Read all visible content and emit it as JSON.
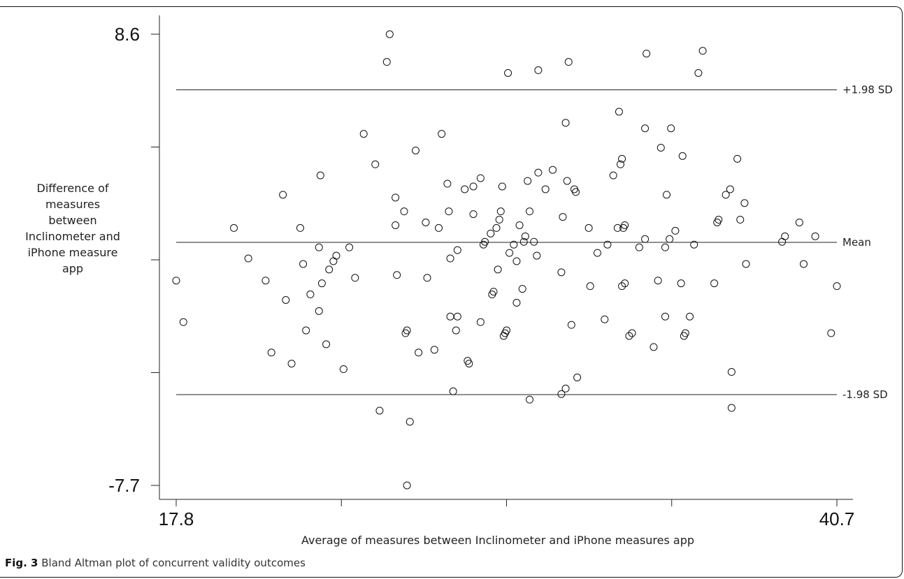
{
  "chart_data": {
    "type": "scatter",
    "xlabel": "Average of measures between Inclinometer and iPhone measures app",
    "ylabel": [
      "Difference of",
      "measures",
      "between",
      "Inclinometer and",
      "iPhone measure",
      "app"
    ],
    "xlim": [
      17.8,
      40.7
    ],
    "ylim": [
      -7.7,
      8.6
    ],
    "x_tick_labels": [
      "17.8",
      "",
      "",
      "",
      "40.7"
    ],
    "y_tick_labels": [
      "8.6",
      "",
      "",
      "",
      "-7.7"
    ],
    "reference_lines": [
      {
        "label": "+1.98 SD",
        "y": 6.59
      },
      {
        "label": "Mean",
        "y": 1.08
      },
      {
        "label": "-1.98 SD",
        "y": -4.42
      }
    ],
    "points": [
      [
        17.8,
        -0.3
      ],
      [
        18.05,
        -1.8
      ],
      [
        19.8,
        1.6
      ],
      [
        20.3,
        0.5
      ],
      [
        20.9,
        -0.3
      ],
      [
        21.1,
        -2.9
      ],
      [
        21.5,
        2.8
      ],
      [
        21.6,
        -1.0
      ],
      [
        21.8,
        -3.3
      ],
      [
        22.1,
        1.6
      ],
      [
        22.2,
        0.3
      ],
      [
        22.3,
        -2.1
      ],
      [
        22.75,
        -1.4
      ],
      [
        22.85,
        -0.4
      ],
      [
        22.45,
        -0.8
      ],
      [
        22.75,
        0.9
      ],
      [
        22.8,
        3.5
      ],
      [
        23.0,
        -2.6
      ],
      [
        23.1,
        0.1
      ],
      [
        23.25,
        0.4
      ],
      [
        23.35,
        0.6
      ],
      [
        23.6,
        -3.5
      ],
      [
        23.8,
        0.9
      ],
      [
        24.0,
        -0.2
      ],
      [
        24.3,
        5.0
      ],
      [
        24.7,
        3.9
      ],
      [
        24.85,
        -5.0
      ],
      [
        25.1,
        7.6
      ],
      [
        25.2,
        8.6
      ],
      [
        25.4,
        2.7
      ],
      [
        25.4,
        1.7
      ],
      [
        25.45,
        -0.1
      ],
      [
        25.7,
        2.2
      ],
      [
        25.75,
        -2.2
      ],
      [
        25.8,
        -2.1
      ],
      [
        25.9,
        -5.4
      ],
      [
        25.8,
        -7.7
      ],
      [
        26.1,
        4.4
      ],
      [
        26.2,
        -2.9
      ],
      [
        26.45,
        1.8
      ],
      [
        26.5,
        -0.2
      ],
      [
        26.75,
        -2.8
      ],
      [
        26.9,
        1.6
      ],
      [
        27.0,
        5.0
      ],
      [
        27.2,
        3.2
      ],
      [
        27.25,
        2.2
      ],
      [
        27.3,
        0.5
      ],
      [
        27.3,
        -1.6
      ],
      [
        27.4,
        -4.3
      ],
      [
        27.5,
        -2.1
      ],
      [
        27.55,
        0.8
      ],
      [
        27.55,
        -1.6
      ],
      [
        27.8,
        3.0
      ],
      [
        27.9,
        -3.2
      ],
      [
        27.95,
        -3.3
      ],
      [
        28.1,
        2.1
      ],
      [
        28.1,
        3.1
      ],
      [
        28.35,
        3.4
      ],
      [
        28.35,
        -1.8
      ],
      [
        28.45,
        1.0
      ],
      [
        28.5,
        1.1
      ],
      [
        28.7,
        1.4
      ],
      [
        28.75,
        -0.8
      ],
      [
        28.8,
        -0.7
      ],
      [
        28.9,
        1.6
      ],
      [
        29.0,
        1.9
      ],
      [
        28.95,
        0.1
      ],
      [
        29.05,
        2.2
      ],
      [
        29.1,
        3.1
      ],
      [
        29.15,
        -2.3
      ],
      [
        29.2,
        -2.2
      ],
      [
        29.25,
        -2.1
      ],
      [
        29.3,
        7.2
      ],
      [
        29.35,
        0.7
      ],
      [
        29.5,
        1.0
      ],
      [
        29.6,
        0.4
      ],
      [
        29.6,
        -1.1
      ],
      [
        29.7,
        1.7
      ],
      [
        29.8,
        -0.6
      ],
      [
        29.85,
        1.1
      ],
      [
        29.9,
        1.3
      ],
      [
        29.98,
        3.3
      ],
      [
        30.05,
        2.2
      ],
      [
        30.05,
        -4.6
      ],
      [
        30.2,
        1.1
      ],
      [
        30.3,
        0.6
      ],
      [
        30.35,
        3.6
      ],
      [
        30.35,
        7.3
      ],
      [
        30.6,
        3.0
      ],
      [
        30.85,
        3.7
      ],
      [
        31.15,
        -4.4
      ],
      [
        31.15,
        0.0
      ],
      [
        31.3,
        -4.2
      ],
      [
        31.3,
        5.4
      ],
      [
        31.35,
        3.3
      ],
      [
        31.2,
        2.0
      ],
      [
        31.4,
        7.6
      ],
      [
        31.5,
        -1.9
      ],
      [
        31.6,
        3.0
      ],
      [
        31.65,
        2.9
      ],
      [
        31.7,
        -3.8
      ],
      [
        32.1,
        1.6
      ],
      [
        32.15,
        -0.5
      ],
      [
        32.4,
        0.7
      ],
      [
        32.65,
        -1.7
      ],
      [
        32.75,
        1.0
      ],
      [
        32.95,
        3.5
      ],
      [
        33.1,
        1.6
      ],
      [
        33.15,
        5.8
      ],
      [
        33.2,
        3.9
      ],
      [
        33.25,
        4.1
      ],
      [
        33.25,
        -0.5
      ],
      [
        33.35,
        -0.4
      ],
      [
        33.3,
        1.6
      ],
      [
        33.35,
        1.7
      ],
      [
        33.5,
        -2.3
      ],
      [
        33.6,
        -2.2
      ],
      [
        33.85,
        0.9
      ],
      [
        34.05,
        5.2
      ],
      [
        34.05,
        1.2
      ],
      [
        34.1,
        7.9
      ],
      [
        34.35,
        -2.7
      ],
      [
        34.5,
        -0.3
      ],
      [
        34.6,
        4.5
      ],
      [
        34.75,
        0.9
      ],
      [
        34.75,
        -1.6
      ],
      [
        34.8,
        2.8
      ],
      [
        34.9,
        1.2
      ],
      [
        34.95,
        5.2
      ],
      [
        35.1,
        1.5
      ],
      [
        35.3,
        -0.4
      ],
      [
        35.35,
        4.2
      ],
      [
        35.4,
        -2.3
      ],
      [
        35.45,
        -2.2
      ],
      [
        35.6,
        -1.6
      ],
      [
        35.75,
        1.0
      ],
      [
        35.9,
        7.2
      ],
      [
        36.05,
        8.0
      ],
      [
        36.45,
        -0.4
      ],
      [
        36.55,
        1.8
      ],
      [
        36.6,
        1.9
      ],
      [
        36.85,
        2.8
      ],
      [
        37.0,
        3.0
      ],
      [
        37.05,
        -3.6
      ],
      [
        37.05,
        -4.9
      ],
      [
        37.35,
        1.9
      ],
      [
        37.5,
        2.5
      ],
      [
        37.25,
        4.1
      ],
      [
        37.55,
        0.3
      ],
      [
        38.8,
        1.1
      ],
      [
        38.9,
        1.3
      ],
      [
        39.4,
        1.8
      ],
      [
        39.55,
        0.3
      ],
      [
        39.95,
        1.3
      ],
      [
        40.5,
        -2.2
      ],
      [
        40.7,
        -0.5
      ]
    ]
  },
  "caption": {
    "label": "Fig. 3",
    "text": " Bland Altman plot of concurrent validity outcomes"
  }
}
